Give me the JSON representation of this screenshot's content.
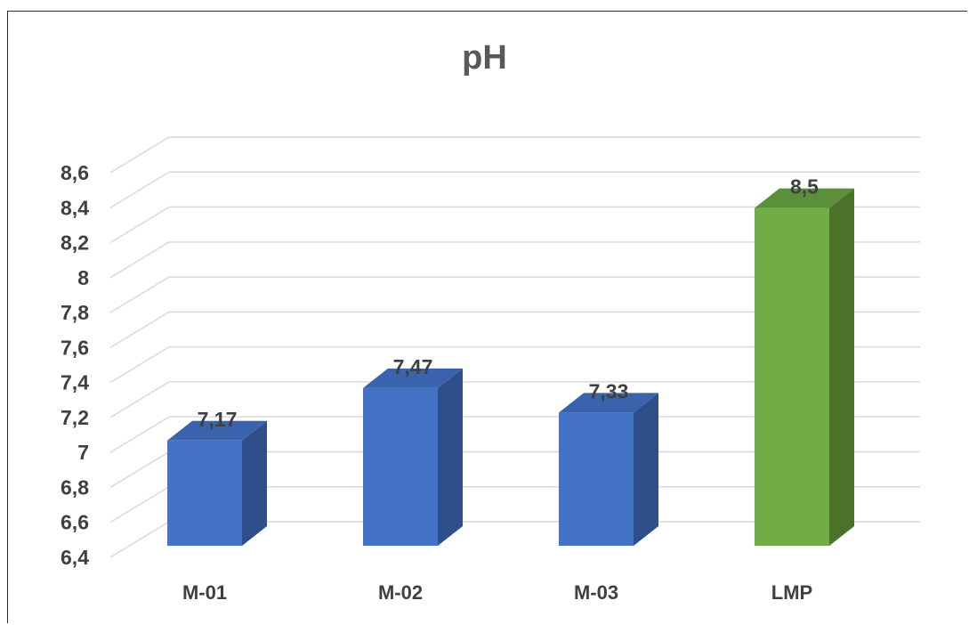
{
  "chart_data": {
    "type": "bar",
    "title": "pH",
    "xlabel": "",
    "ylabel": "",
    "categories": [
      "M-01",
      "M-02",
      "M-03",
      "LMP"
    ],
    "values": [
      7.17,
      7.47,
      7.33,
      8.5
    ],
    "value_labels": [
      "7,17",
      "7,47",
      "7,33",
      "8,5"
    ],
    "ylim": [
      6.4,
      8.6
    ],
    "yticks": [
      6.4,
      6.6,
      6.8,
      7,
      7.2,
      7.4,
      7.6,
      7.8,
      8,
      8.2,
      8.4,
      8.6
    ],
    "ytick_labels": [
      "6,4",
      "6,6",
      "6,8",
      "7",
      "7,2",
      "7,4",
      "7,6",
      "7,8",
      "8",
      "8,2",
      "8,4",
      "8,6"
    ],
    "grid": true,
    "style": "3d-column",
    "colors": {
      "bar": [
        "#4472c4",
        "#4472c4",
        "#4472c4",
        "#70ad47"
      ],
      "bar_side": [
        "#2f4f8a",
        "#2f4f8a",
        "#2f4f8a",
        "#4a7329"
      ],
      "bar_top": [
        "#3a63ad",
        "#3a63ad",
        "#3a63ad",
        "#5b8f39"
      ],
      "grid": "#d9d9d9",
      "text": "#404040",
      "title": "#595959"
    }
  }
}
